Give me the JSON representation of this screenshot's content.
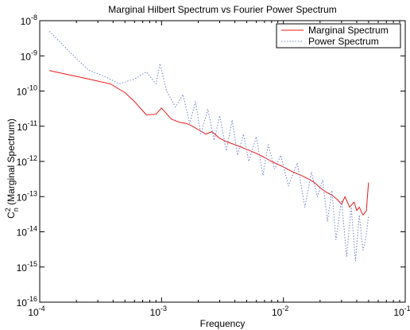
{
  "chart_data": {
    "type": "line",
    "title": "Marginal Hilbert Spectrum vs Fourier Power Spectrum",
    "xlabel": "Frequency",
    "ylabel": {
      "base": "C",
      "sup": "2",
      "sub": "n",
      "rest": " (Marginal Spectrum)"
    },
    "x_scale": "log",
    "y_scale": "log",
    "xlim": [
      0.0001,
      0.1
    ],
    "ylim": [
      1e-16,
      1e-08
    ],
    "x_ticks": [
      {
        "value": 0.0001,
        "base": "10",
        "exp": "-4"
      },
      {
        "value": 0.001,
        "base": "10",
        "exp": "-3"
      },
      {
        "value": 0.01,
        "base": "10",
        "exp": "-2"
      },
      {
        "value": 0.1,
        "base": "10",
        "exp": "-1"
      }
    ],
    "y_ticks": [
      {
        "value": 1e-16,
        "base": "10",
        "exp": "-16"
      },
      {
        "value": 1e-15,
        "base": "10",
        "exp": "-15"
      },
      {
        "value": 1e-14,
        "base": "10",
        "exp": "-14"
      },
      {
        "value": 1e-13,
        "base": "10",
        "exp": "-13"
      },
      {
        "value": 1e-12,
        "base": "10",
        "exp": "-12"
      },
      {
        "value": 1e-11,
        "base": "10",
        "exp": "-11"
      },
      {
        "value": 1e-10,
        "base": "10",
        "exp": "-10"
      },
      {
        "value": 1e-09,
        "base": "10",
        "exp": "-9"
      },
      {
        "value": 1e-08,
        "base": "10",
        "exp": "-8"
      }
    ],
    "grid": false,
    "legend_position": "top-right",
    "series": [
      {
        "name": "Marginal Spectrum",
        "color": "#e8191c",
        "style": "solid",
        "x": [
          0.00012,
          0.00025,
          0.00038,
          0.0005,
          0.0006,
          0.00075,
          0.0009,
          0.001,
          0.0012,
          0.0014,
          0.0016,
          0.0018,
          0.002,
          0.0023,
          0.0026,
          0.003,
          0.0035,
          0.004,
          0.005,
          0.006,
          0.007,
          0.008,
          0.01,
          0.012,
          0.014,
          0.016,
          0.018,
          0.02,
          0.022,
          0.025,
          0.028,
          0.03,
          0.032,
          0.035,
          0.038,
          0.04,
          0.042,
          0.045,
          0.048,
          0.05
        ],
        "y": [
          3.8e-10,
          2.2e-10,
          1.6e-10,
          9e-11,
          5e-11,
          2.1e-11,
          2.2e-11,
          3.3e-11,
          1.6e-11,
          1.3e-11,
          1.2e-11,
          1e-11,
          8e-12,
          6e-12,
          7e-12,
          4.5e-12,
          3.5e-12,
          3e-12,
          2.2e-12,
          1.7e-12,
          1.3e-12,
          1e-12,
          7e-13,
          5e-13,
          4e-13,
          3.2e-13,
          2.5e-13,
          1.8e-13,
          1.4e-13,
          1.1e-13,
          8e-14,
          6e-14,
          1e-13,
          5e-14,
          7e-14,
          4e-14,
          5e-14,
          3e-14,
          4e-14,
          2.5e-13
        ]
      },
      {
        "name": "Power Spectrum",
        "color": "#6f82c8",
        "style": "dotted",
        "x": [
          0.00012,
          0.00018,
          0.00025,
          0.00035,
          0.00045,
          0.0006,
          0.00075,
          0.0009,
          0.00097,
          0.0011,
          0.0013,
          0.0015,
          0.0017,
          0.0019,
          0.0021,
          0.0024,
          0.0027,
          0.003,
          0.0034,
          0.0038,
          0.0042,
          0.0047,
          0.0052,
          0.006,
          0.0068,
          0.0075,
          0.0085,
          0.0095,
          0.011,
          0.013,
          0.015,
          0.017,
          0.019,
          0.021,
          0.023,
          0.025,
          0.027,
          0.03,
          0.033,
          0.036,
          0.039,
          0.042,
          0.045,
          0.048,
          0.05
        ],
        "y": [
          5e-09,
          1.2e-09,
          4e-10,
          2.5e-10,
          1.6e-10,
          2.2e-10,
          3.5e-10,
          1.6e-10,
          6e-10,
          1e-10,
          3.5e-11,
          8e-11,
          1.2e-11,
          5e-11,
          6e-12,
          3e-11,
          4e-12,
          2e-11,
          2e-12,
          1.5e-11,
          1.5e-12,
          6e-12,
          1e-12,
          5e-12,
          4e-13,
          3e-12,
          6e-13,
          1.5e-12,
          2e-13,
          9e-13,
          5e-14,
          5e-13,
          1e-13,
          3e-13,
          2e-14,
          1.5e-13,
          6e-15,
          8e-14,
          2e-15,
          5e-14,
          1.5e-15,
          3e-14,
          3e-15,
          8e-15,
          3e-14
        ]
      }
    ]
  }
}
